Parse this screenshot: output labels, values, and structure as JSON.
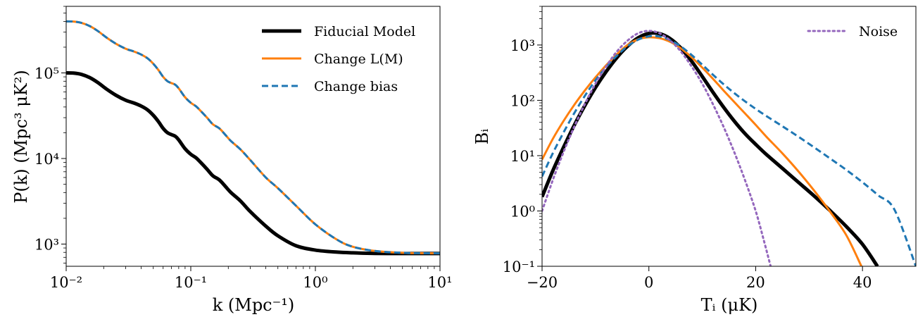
{
  "chart_data": [
    {
      "type": "line",
      "xlabel": "k (Mpc⁻¹)",
      "ylabel": "P(k) (Mpc³ μK²)",
      "x_scale": "log",
      "y_scale": "log",
      "xlim": [
        0.01,
        10
      ],
      "ylim": [
        550,
        600000
      ],
      "x_ticks": [
        {
          "value": 0.01,
          "label": "10⁻²"
        },
        {
          "value": 0.1,
          "label": "10⁻¹"
        },
        {
          "value": 1,
          "label": "10⁰"
        },
        {
          "value": 10,
          "label": "10¹"
        }
      ],
      "y_ticks": [
        {
          "value": 1000,
          "label": "10³"
        },
        {
          "value": 10000,
          "label": "10⁴"
        },
        {
          "value": 100000,
          "label": "10⁵"
        }
      ],
      "legend_position": "top-right",
      "series": [
        {
          "name": "Fiducial Model",
          "color": "#000000",
          "style": "solid",
          "x": [
            0.01,
            0.0115,
            0.0133,
            0.0155,
            0.018,
            0.021,
            0.025,
            0.03,
            0.035,
            0.04,
            0.045,
            0.05,
            0.055,
            0.06,
            0.065,
            0.07,
            0.075,
            0.08,
            0.09,
            0.1,
            0.11,
            0.12,
            0.135,
            0.15,
            0.17,
            0.19,
            0.21,
            0.25,
            0.3,
            0.4,
            0.5,
            0.7,
            1,
            1.5,
            2,
            3,
            5,
            7,
            10
          ],
          "y": [
            100000,
            99500,
            96000,
            88000,
            77000,
            65000,
            55000,
            48000,
            44500,
            41000,
            37000,
            32000,
            27000,
            22500,
            20000,
            19000,
            18200,
            16500,
            13000,
            11200,
            10200,
            9000,
            7500,
            6300,
            5600,
            4700,
            4000,
            3200,
            2400,
            1620,
            1250,
            955,
            850,
            805,
            790,
            778,
            775,
            775,
            775
          ]
        },
        {
          "name": "Change L(M)",
          "color": "#ff7f0e",
          "style": "solid",
          "x": [
            0.01,
            0.0115,
            0.0133,
            0.0155,
            0.018,
            0.021,
            0.025,
            0.03,
            0.035,
            0.04,
            0.045,
            0.05,
            0.055,
            0.06,
            0.065,
            0.07,
            0.075,
            0.08,
            0.09,
            0.1,
            0.11,
            0.12,
            0.135,
            0.15,
            0.17,
            0.19,
            0.21,
            0.25,
            0.3,
            0.4,
            0.5,
            0.7,
            1,
            1.5,
            2,
            3,
            5,
            7,
            10
          ],
          "y": [
            400000,
            398000,
            384000,
            352000,
            308000,
            260000,
            220000,
            192000,
            178000,
            164000,
            148000,
            128000,
            108000,
            90000,
            80000,
            76000,
            72800,
            66000,
            52000,
            44800,
            40800,
            36000,
            30000,
            25200,
            22400,
            18800,
            16000,
            12800,
            9600,
            6000,
            4500,
            2800,
            1700,
            1120,
            930,
            830,
            790,
            782,
            780
          ]
        },
        {
          "name": "Change bias",
          "color": "#1f77b4",
          "style": "dashed",
          "x": [
            0.01,
            0.0115,
            0.0133,
            0.0155,
            0.018,
            0.021,
            0.025,
            0.03,
            0.035,
            0.04,
            0.045,
            0.05,
            0.055,
            0.06,
            0.065,
            0.07,
            0.075,
            0.08,
            0.09,
            0.1,
            0.11,
            0.12,
            0.135,
            0.15,
            0.17,
            0.19,
            0.21,
            0.25,
            0.3,
            0.4,
            0.5,
            0.7,
            1,
            1.5,
            2,
            3,
            5,
            7,
            10
          ],
          "y": [
            400000,
            398000,
            384000,
            352000,
            308000,
            260000,
            220000,
            192000,
            178000,
            164000,
            148000,
            128000,
            108000,
            90000,
            80000,
            76000,
            72800,
            66000,
            52000,
            44800,
            40800,
            36000,
            30000,
            25200,
            22400,
            18800,
            16000,
            12800,
            9600,
            6000,
            4500,
            2800,
            1700,
            1120,
            930,
            830,
            790,
            782,
            780
          ]
        }
      ]
    },
    {
      "type": "line",
      "xlabel": "Tᵢ (μK)",
      "ylabel": "Bᵢ",
      "x_scale": "linear",
      "y_scale": "log",
      "xlim": [
        -20,
        50
      ],
      "ylim": [
        0.1,
        5000
      ],
      "x_ticks": [
        {
          "value": -20,
          "label": "−20"
        },
        {
          "value": 0,
          "label": "0"
        },
        {
          "value": 20,
          "label": "20"
        },
        {
          "value": 40,
          "label": "40"
        }
      ],
      "y_ticks": [
        {
          "value": 0.1,
          "label": "10⁻¹"
        },
        {
          "value": 1,
          "label": "10⁰"
        },
        {
          "value": 10,
          "label": "10¹"
        },
        {
          "value": 100,
          "label": "10²"
        },
        {
          "value": 1000,
          "label": "10³"
        }
      ],
      "legend_position": "top-right",
      "series": [
        {
          "name": "",
          "color": "#000000",
          "style": "solid",
          "x": [
            -20,
            -18,
            -16,
            -14,
            -12,
            -10,
            -8,
            -6,
            -4,
            -2,
            0,
            2,
            4,
            6,
            8,
            10,
            12,
            14,
            16,
            18,
            20,
            22,
            25,
            28,
            31,
            34,
            37,
            40,
            42.8
          ],
          "y": [
            1.8,
            5.3,
            14,
            35,
            80,
            170,
            330,
            590,
            950,
            1350,
            1620,
            1600,
            1300,
            880,
            510,
            270,
            140,
            75,
            42,
            25,
            16,
            10.5,
            5.9,
            3.3,
            1.85,
            1.0,
            0.52,
            0.25,
            0.1
          ]
        },
        {
          "name": "",
          "color": "#ff7f0e",
          "style": "solid",
          "x": [
            -20,
            -18,
            -16,
            -14,
            -12,
            -10,
            -8,
            -6,
            -4,
            -2,
            0,
            2,
            4,
            6,
            8,
            10,
            12,
            14,
            16,
            18,
            20,
            22,
            25,
            28,
            31,
            34,
            37,
            39.8
          ],
          "y": [
            8.5,
            20,
            42,
            82,
            150,
            260,
            430,
            680,
            1000,
            1270,
            1380,
            1330,
            1140,
            870,
            600,
            390,
            245,
            150,
            93,
            58,
            36,
            22,
            11,
            5.2,
            2.3,
            0.95,
            0.36,
            0.1
          ]
        },
        {
          "name": "",
          "color": "#1f77b4",
          "style": "dashed",
          "x": [
            -20,
            -18,
            -16,
            -14,
            -12,
            -10,
            -8,
            -6,
            -4,
            -2,
            0,
            2,
            4,
            6,
            8,
            10,
            12,
            14,
            16,
            18,
            20,
            22,
            25,
            28,
            31,
            34,
            37,
            40,
            43,
            46,
            50
          ],
          "y": [
            4.2,
            11,
            26,
            58,
            120,
            230,
            400,
            640,
            950,
            1250,
            1430,
            1420,
            1220,
            940,
            660,
            440,
            290,
            195,
            135,
            96,
            70,
            52,
            34,
            22,
            14,
            8.8,
            5.5,
            3.3,
            1.9,
            1.05,
            0.1
          ]
        },
        {
          "name": "Noise",
          "color": "#9467bd",
          "style": "dotted",
          "x": [
            -20,
            -18,
            -16,
            -14,
            -12,
            -10,
            -8,
            -6,
            -4,
            -2,
            0,
            2,
            4,
            6,
            8,
            10,
            12,
            14,
            16,
            18,
            20,
            21.5,
            22.8
          ],
          "y": [
            1.0,
            3.6,
            11.5,
            33,
            85,
            200,
            410,
            760,
            1200,
            1630,
            1800,
            1630,
            1200,
            760,
            410,
            200,
            85,
            33,
            11.5,
            3.6,
            1.0,
            0.3,
            0.1
          ]
        }
      ]
    }
  ]
}
